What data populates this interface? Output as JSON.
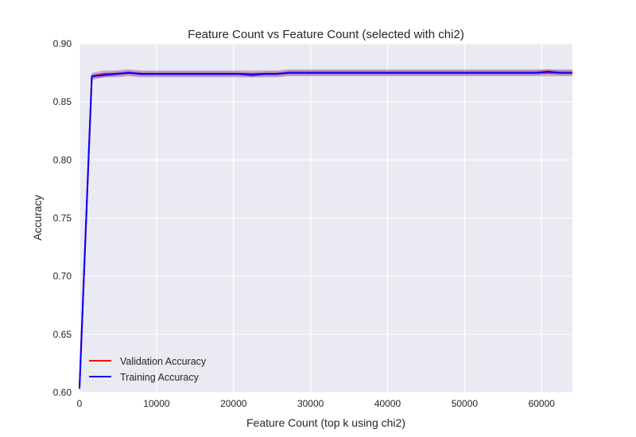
{
  "chart_data": {
    "type": "line",
    "title": "Feature Count vs Feature Count (selected with chi2)",
    "xlabel": "Feature Count (top k using chi2)",
    "ylabel": "Accuracy",
    "xlim": [
      0,
      64000
    ],
    "ylim": [
      0.6,
      0.9
    ],
    "xticks": [
      0,
      10000,
      20000,
      30000,
      40000,
      50000,
      60000
    ],
    "yticks": [
      0.6,
      0.65,
      0.7,
      0.75,
      0.8,
      0.85,
      0.9
    ],
    "xtick_labels": [
      "0",
      "10000",
      "20000",
      "30000",
      "40000",
      "50000",
      "60000"
    ],
    "ytick_labels": [
      "0.60",
      "0.65",
      "0.70",
      "0.75",
      "0.80",
      "0.85",
      "0.90"
    ],
    "grid": true,
    "legend_position": "lower-left",
    "x": [
      0,
      1600,
      3200,
      4800,
      6400,
      8000,
      9600,
      11200,
      12800,
      14400,
      16000,
      17600,
      19200,
      20800,
      22400,
      24000,
      25600,
      27200,
      28800,
      30400,
      32000,
      33600,
      35200,
      36800,
      38400,
      40000,
      41600,
      43200,
      44800,
      46400,
      48000,
      49600,
      51200,
      52800,
      54400,
      56000,
      57600,
      59200,
      60800,
      62400,
      64000
    ],
    "series": [
      {
        "name": "Validation Accuracy",
        "color": "#ff0000",
        "values": [
          0.603,
          0.872,
          0.874,
          0.874,
          0.875,
          0.874,
          0.874,
          0.874,
          0.874,
          0.874,
          0.874,
          0.874,
          0.874,
          0.874,
          0.874,
          0.874,
          0.874,
          0.875,
          0.875,
          0.875,
          0.875,
          0.875,
          0.875,
          0.875,
          0.875,
          0.875,
          0.875,
          0.875,
          0.875,
          0.875,
          0.875,
          0.875,
          0.875,
          0.875,
          0.875,
          0.875,
          0.875,
          0.875,
          0.875,
          0.875,
          0.875
        ],
        "band": 0.003
      },
      {
        "name": "Training Accuracy",
        "color": "#0000ff",
        "values": [
          0.604,
          0.872,
          0.873,
          0.874,
          0.875,
          0.874,
          0.874,
          0.874,
          0.874,
          0.874,
          0.874,
          0.874,
          0.874,
          0.874,
          0.873,
          0.874,
          0.874,
          0.875,
          0.875,
          0.875,
          0.875,
          0.875,
          0.875,
          0.875,
          0.875,
          0.875,
          0.875,
          0.875,
          0.875,
          0.875,
          0.875,
          0.875,
          0.875,
          0.875,
          0.875,
          0.875,
          0.875,
          0.875,
          0.876,
          0.875,
          0.875
        ],
        "band": 0.002
      }
    ],
    "colors": {
      "plot_background": "#eaeaf2",
      "grid": "#ffffff",
      "band": "#8e3b8e"
    }
  }
}
